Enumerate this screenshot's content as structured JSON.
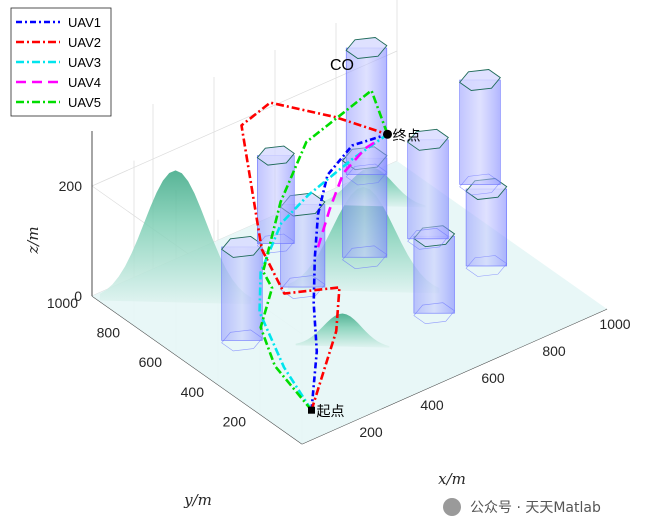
{
  "chart_data": {
    "type": "line3d",
    "title": "CO",
    "xlabel": "x/m",
    "ylabel": "y/m",
    "zlabel": "z/m",
    "xlim": [
      0,
      1000
    ],
    "ylim": [
      0,
      1000
    ],
    "zlim": [
      0,
      300
    ],
    "x_ticks": [
      "200",
      "400",
      "600",
      "800",
      "1000"
    ],
    "y_ticks": [
      "200",
      "400",
      "600",
      "800",
      "1000"
    ],
    "z_ticks": [
      "0",
      "200"
    ],
    "grid": true,
    "legend_position": "top-left",
    "markers": [
      {
        "label": "起点",
        "x": 100,
        "y": 100,
        "z": 10,
        "symbol": "square"
      },
      {
        "label": "终点",
        "x": 900,
        "y": 900,
        "z": 100,
        "symbol": "circle"
      }
    ],
    "obstacles": [
      {
        "x": 175,
        "y": 540,
        "r": 55,
        "h": 170
      },
      {
        "x": 450,
        "y": 650,
        "r": 60,
        "h": 150
      },
      {
        "x": 520,
        "y": 880,
        "r": 50,
        "h": 160
      },
      {
        "x": 640,
        "y": 300,
        "r": 55,
        "h": 140
      },
      {
        "x": 660,
        "y": 660,
        "r": 60,
        "h": 180
      },
      {
        "x": 840,
        "y": 620,
        "r": 55,
        "h": 180
      },
      {
        "x": 880,
        "y": 400,
        "r": 55,
        "h": 140
      },
      {
        "x": 900,
        "y": 1000,
        "r": 55,
        "h": 230
      },
      {
        "x": 1100,
        "y": 750,
        "r": 55,
        "h": 190
      }
    ],
    "series": [
      {
        "name": "UAV1",
        "color": "#0000ff",
        "dash": "6 3 2 3",
        "points": [
          [
            100,
            100,
            10
          ],
          [
            200,
            220,
            60
          ],
          [
            300,
            380,
            80
          ],
          [
            400,
            520,
            100
          ],
          [
            500,
            650,
            120
          ],
          [
            600,
            750,
            140
          ],
          [
            750,
            850,
            130
          ],
          [
            900,
            900,
            100
          ]
        ]
      },
      {
        "name": "UAV2",
        "color": "#ff0000",
        "dash": "8 3 2 3",
        "points": [
          [
            100,
            100,
            10
          ],
          [
            250,
            200,
            90
          ],
          [
            350,
            330,
            110
          ],
          [
            300,
            520,
            60
          ],
          [
            350,
            700,
            80
          ],
          [
            380,
            840,
            260
          ],
          [
            550,
            950,
            230
          ],
          [
            750,
            930,
            160
          ],
          [
            900,
            900,
            100
          ]
        ]
      },
      {
        "name": "UAV3",
        "color": "#00e5ee",
        "dash": "8 3 2 3",
        "points": [
          [
            100,
            100,
            10
          ],
          [
            120,
            260,
            40
          ],
          [
            150,
            420,
            90
          ],
          [
            250,
            560,
            100
          ],
          [
            400,
            680,
            120
          ],
          [
            550,
            770,
            110
          ],
          [
            750,
            850,
            105
          ],
          [
            900,
            900,
            100
          ]
        ]
      },
      {
        "name": "UAV4",
        "color": "#ff00ff",
        "dash": "10 6",
        "points": [
          [
            500,
            650,
            60
          ],
          [
            600,
            740,
            80
          ],
          [
            700,
            820,
            100
          ],
          [
            800,
            860,
            110
          ],
          [
            850,
            880,
            105
          ]
        ]
      },
      {
        "name": "UAV5",
        "color": "#00dd00",
        "dash": "8 3 2 3",
        "points": [
          [
            100,
            100,
            10
          ],
          [
            90,
            260,
            50
          ],
          [
            140,
            400,
            70
          ],
          [
            260,
            520,
            80
          ],
          [
            320,
            650,
            60
          ],
          [
            460,
            770,
            120
          ],
          [
            620,
            880,
            160
          ],
          [
            820,
            1000,
            130
          ],
          [
            930,
            1020,
            140
          ],
          [
            900,
            900,
            100
          ]
        ]
      }
    ]
  },
  "watermark": "公众号 · 天天Matlab"
}
